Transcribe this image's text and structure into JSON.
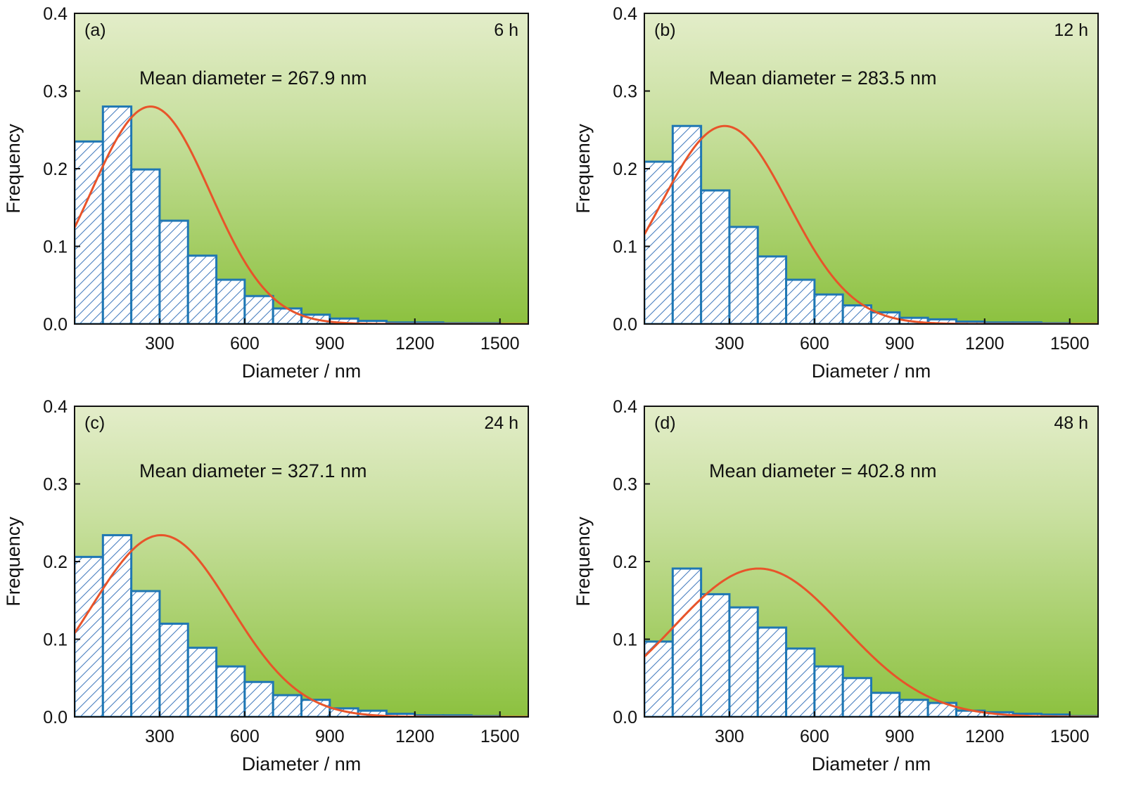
{
  "colors": {
    "bar_stroke": "#1f77b4",
    "hatch": "#4a7fc0",
    "fit_curve": "#e8542a",
    "background_top": "#e3edc9",
    "background_bottom": "#8cc13f",
    "axis": "#111111"
  },
  "chart_data": [
    {
      "type": "bar",
      "panel_label": "(a)",
      "time_label": "6 h",
      "annotation": "Mean diameter = 267.9 nm",
      "xlabel": "Diameter / nm",
      "ylabel": "Frequency",
      "xlim": [
        0,
        1600
      ],
      "ylim": [
        0,
        0.4
      ],
      "xticks": [
        300,
        600,
        900,
        1200,
        1500
      ],
      "xtick_labels": [
        "300",
        "600",
        "900",
        "1200",
        "1500"
      ],
      "yticks": [
        0.0,
        0.1,
        0.2,
        0.3,
        0.4
      ],
      "ytick_labels": [
        "0.0",
        "0.1",
        "0.2",
        "0.3",
        "0.4"
      ],
      "bin_width": 100,
      "bin_starts": [
        0,
        100,
        200,
        300,
        400,
        500,
        600,
        700,
        800,
        900,
        1000,
        1100,
        1200,
        1300,
        1400,
        1500
      ],
      "values": [
        0.235,
        0.28,
        0.199,
        0.133,
        0.088,
        0.057,
        0.036,
        0.02,
        0.012,
        0.007,
        0.004,
        0.002,
        0.002,
        0.001,
        0.001,
        0.0
      ],
      "fit": {
        "peak_x": 267.9,
        "peak_y": 0.28,
        "sigma": 210
      }
    },
    {
      "type": "bar",
      "panel_label": "(b)",
      "time_label": "12 h",
      "annotation": "Mean diameter = 283.5 nm",
      "xlabel": "Diameter / nm",
      "ylabel": "Frequency",
      "xlim": [
        0,
        1600
      ],
      "ylim": [
        0,
        0.4
      ],
      "xticks": [
        300,
        600,
        900,
        1200,
        1500
      ],
      "xtick_labels": [
        "300",
        "600",
        "900",
        "1200",
        "1500"
      ],
      "yticks": [
        0.0,
        0.1,
        0.2,
        0.3,
        0.4
      ],
      "ytick_labels": [
        "0.0",
        "0.1",
        "0.2",
        "0.3",
        "0.4"
      ],
      "bin_width": 100,
      "bin_starts": [
        0,
        100,
        200,
        300,
        400,
        500,
        600,
        700,
        800,
        900,
        1000,
        1100,
        1200,
        1300,
        1400,
        1500
      ],
      "values": [
        0.209,
        0.255,
        0.172,
        0.125,
        0.087,
        0.057,
        0.038,
        0.024,
        0.015,
        0.008,
        0.006,
        0.003,
        0.002,
        0.002,
        0.001,
        0.0
      ],
      "fit": {
        "peak_x": 283.5,
        "peak_y": 0.255,
        "sigma": 225
      }
    },
    {
      "type": "bar",
      "panel_label": "(c)",
      "time_label": "24 h",
      "annotation": "Mean diameter = 327.1 nm",
      "xlabel": "Diameter / nm",
      "ylabel": "Frequency",
      "xlim": [
        0,
        1600
      ],
      "ylim": [
        0,
        0.4
      ],
      "xticks": [
        300,
        600,
        900,
        1200,
        1500
      ],
      "xtick_labels": [
        "300",
        "600",
        "900",
        "1200",
        "1500"
      ],
      "yticks": [
        0.0,
        0.1,
        0.2,
        0.3,
        0.4
      ],
      "ytick_labels": [
        "0.0",
        "0.1",
        "0.2",
        "0.3",
        "0.4"
      ],
      "bin_width": 100,
      "bin_starts": [
        0,
        100,
        200,
        300,
        400,
        500,
        600,
        700,
        800,
        900,
        1000,
        1100,
        1200,
        1300,
        1400,
        1500
      ],
      "values": [
        0.206,
        0.234,
        0.162,
        0.12,
        0.089,
        0.065,
        0.045,
        0.028,
        0.022,
        0.011,
        0.008,
        0.004,
        0.002,
        0.002,
        0.001,
        0.0
      ],
      "fit": {
        "peak_x": 305,
        "peak_y": 0.234,
        "sigma": 245
      }
    },
    {
      "type": "bar",
      "panel_label": "(d)",
      "time_label": "48 h",
      "annotation": "Mean diameter = 402.8 nm",
      "xlabel": "Diameter / nm",
      "ylabel": "Frequency",
      "xlim": [
        0,
        1600
      ],
      "ylim": [
        0,
        0.4
      ],
      "xticks": [
        300,
        600,
        900,
        1200,
        1500
      ],
      "xtick_labels": [
        "300",
        "600",
        "900",
        "1200",
        "1500"
      ],
      "yticks": [
        0.0,
        0.1,
        0.2,
        0.3,
        0.4
      ],
      "ytick_labels": [
        "0.0",
        "0.1",
        "0.2",
        "0.3",
        "0.4"
      ],
      "bin_width": 100,
      "bin_starts": [
        0,
        100,
        200,
        300,
        400,
        500,
        600,
        700,
        800,
        900,
        1000,
        1100,
        1200,
        1300,
        1400,
        1500
      ],
      "values": [
        0.097,
        0.191,
        0.158,
        0.141,
        0.115,
        0.088,
        0.065,
        0.05,
        0.031,
        0.022,
        0.018,
        0.008,
        0.006,
        0.004,
        0.003,
        0.001
      ],
      "fit": {
        "peak_x": 402.8,
        "peak_y": 0.191,
        "sigma": 300
      }
    }
  ]
}
